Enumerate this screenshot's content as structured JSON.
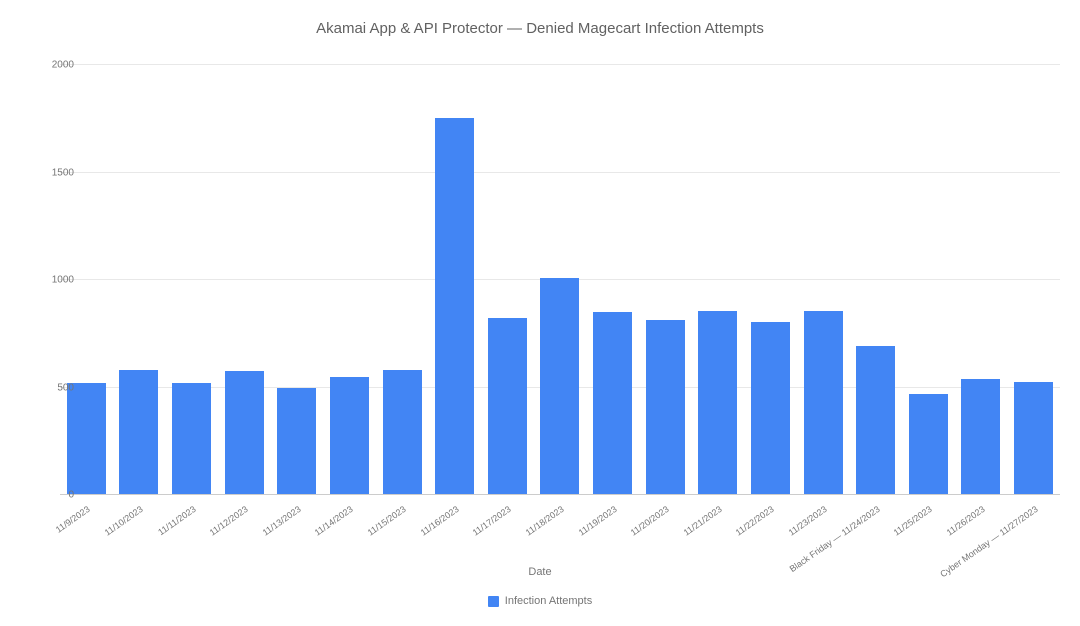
{
  "chart": {
    "type": "bar",
    "title": "Akamai App & API Protector — Denied Magecart Infection Attempts",
    "title_fontsize": 15,
    "title_color": "#616161",
    "x_axis_title": "Date",
    "axis_label_fontsize": 11,
    "tick_fontsize": 10,
    "tick_color": "#757575",
    "background_color": "#ffffff",
    "grid_color": "#e8e8e8",
    "baseline_color": "#cccccc",
    "ylim": [
      0,
      2000
    ],
    "ytick_step": 500,
    "yticks": [
      0,
      500,
      1000,
      1500,
      2000
    ],
    "bar_color": "#4285f4",
    "bar_width_ratio": 0.74,
    "legend": {
      "label": "Infection Attempts",
      "swatch_color": "#4285f4",
      "position": "bottom-center"
    },
    "categories": [
      "11/9/2023",
      "11/10/2023",
      "11/11/2023",
      "11/12/2023",
      "11/13/2023",
      "11/14/2023",
      "11/15/2023",
      "11/16/2023",
      "11/17/2023",
      "11/18/2023",
      "11/19/2023",
      "11/20/2023",
      "11/21/2023",
      "11/22/2023",
      "11/23/2023",
      "Black Friday — 11/24/2023",
      "11/25/2023",
      "11/26/2023",
      "Cyber Monday — 11/27/2023"
    ],
    "values": [
      520,
      580,
      520,
      575,
      500,
      550,
      580,
      1755,
      825,
      1010,
      850,
      815,
      855,
      805,
      855,
      695,
      470,
      540,
      525
    ]
  }
}
